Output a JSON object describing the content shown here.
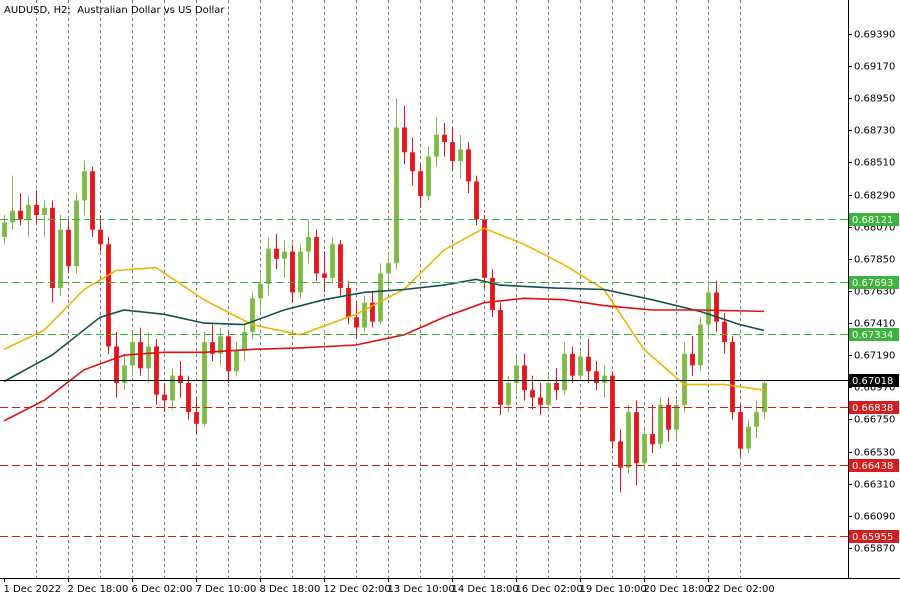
{
  "chart_data": {
    "type": "candlestick",
    "title": "AUDUSD, H2:  Australian Dollar vs US Dollar",
    "up_color": "#7dbb42",
    "down_color": "#e8141a",
    "ylim": [
      0.65664,
      0.69623
    ],
    "yticks": [
      {
        "value": 0.6939,
        "label": "0.69390"
      },
      {
        "value": 0.6917,
        "label": "0.69170"
      },
      {
        "value": 0.6895,
        "label": "0.68950"
      },
      {
        "value": 0.6873,
        "label": "0.68730"
      },
      {
        "value": 0.6851,
        "label": "0.68510"
      },
      {
        "value": 0.6829,
        "label": "0.68290"
      },
      {
        "value": 0.6807,
        "label": "0.68070"
      },
      {
        "value": 0.6785,
        "label": "0.67850"
      },
      {
        "value": 0.6763,
        "label": "0.67630"
      },
      {
        "value": 0.6741,
        "label": "0.67410"
      },
      {
        "value": 0.6719,
        "label": "0.67190"
      },
      {
        "value": 0.6697,
        "label": "0.66970"
      },
      {
        "value": 0.6675,
        "label": "0.66750"
      },
      {
        "value": 0.6653,
        "label": "0.66530"
      },
      {
        "value": 0.6631,
        "label": "0.66310"
      },
      {
        "value": 0.6609,
        "label": "0.66090"
      },
      {
        "value": 0.6587,
        "label": "0.65870"
      }
    ],
    "xlim": [
      -0.5,
      105.5
    ],
    "xticks": [
      {
        "value": 0,
        "label": "1 Dec 2022"
      },
      {
        "value": 8,
        "label": "2 Dec 18:00"
      },
      {
        "value": 16,
        "label": "6 Dec 02:00"
      },
      {
        "value": 24,
        "label": "7 Dec 10:00"
      },
      {
        "value": 32,
        "label": "8 Dec 18:00"
      },
      {
        "value": 40,
        "label": "12 Dec 02:00"
      },
      {
        "value": 48,
        "label": "13 Dec 10:00"
      },
      {
        "value": 56,
        "label": "14 Dec 18:00"
      },
      {
        "value": 64,
        "label": "16 Dec 02:00"
      },
      {
        "value": 72,
        "label": "19 Dec 10:00"
      },
      {
        "value": 80,
        "label": "20 Dec 18:00"
      },
      {
        "value": 88,
        "label": "22 Dec 02:00"
      }
    ],
    "ohlc": [
      [
        0.68,
        0.6815,
        0.6795,
        0.681
      ],
      [
        0.681,
        0.6842,
        0.6805,
        0.6818
      ],
      [
        0.6818,
        0.683,
        0.6808,
        0.6812
      ],
      [
        0.6812,
        0.6828,
        0.68,
        0.6822
      ],
      [
        0.6822,
        0.6832,
        0.681,
        0.6815
      ],
      [
        0.6815,
        0.6825,
        0.68,
        0.682
      ],
      [
        0.682,
        0.6825,
        0.6755,
        0.6765
      ],
      [
        0.6765,
        0.6815,
        0.676,
        0.6805
      ],
      [
        0.6805,
        0.6812,
        0.6775,
        0.678
      ],
      [
        0.678,
        0.683,
        0.6775,
        0.6825
      ],
      [
        0.6825,
        0.6852,
        0.6815,
        0.6845
      ],
      [
        0.6845,
        0.6848,
        0.68,
        0.6805
      ],
      [
        0.6805,
        0.6815,
        0.679,
        0.6795
      ],
      [
        0.6795,
        0.68,
        0.672,
        0.6725
      ],
      [
        0.6725,
        0.6735,
        0.669,
        0.67
      ],
      [
        0.67,
        0.672,
        0.6695,
        0.6712
      ],
      [
        0.6712,
        0.6735,
        0.6705,
        0.6728
      ],
      [
        0.6728,
        0.6738,
        0.6705,
        0.671
      ],
      [
        0.671,
        0.6735,
        0.67,
        0.6725
      ],
      [
        0.6725,
        0.673,
        0.6685,
        0.6692
      ],
      [
        0.6692,
        0.67,
        0.668,
        0.6688
      ],
      [
        0.6688,
        0.671,
        0.6682,
        0.6705
      ],
      [
        0.6705,
        0.6715,
        0.669,
        0.67
      ],
      [
        0.67,
        0.6705,
        0.6675,
        0.668
      ],
      [
        0.668,
        0.669,
        0.6665,
        0.6672
      ],
      [
        0.6672,
        0.6735,
        0.667,
        0.6728
      ],
      [
        0.6728,
        0.674,
        0.6715,
        0.672
      ],
      [
        0.672,
        0.6738,
        0.6712,
        0.6732
      ],
      [
        0.6732,
        0.6735,
        0.67,
        0.6708
      ],
      [
        0.6708,
        0.6728,
        0.6705,
        0.6722
      ],
      [
        0.6722,
        0.674,
        0.6715,
        0.6735
      ],
      [
        0.6735,
        0.6762,
        0.673,
        0.6758
      ],
      [
        0.6758,
        0.6775,
        0.6748,
        0.6768
      ],
      [
        0.6768,
        0.68,
        0.676,
        0.6792
      ],
      [
        0.6792,
        0.6802,
        0.6778,
        0.6785
      ],
      [
        0.6785,
        0.6798,
        0.6772,
        0.679
      ],
      [
        0.679,
        0.6795,
        0.6755,
        0.6762
      ],
      [
        0.6762,
        0.6795,
        0.6758,
        0.679
      ],
      [
        0.679,
        0.6812,
        0.6782,
        0.68
      ],
      [
        0.68,
        0.6805,
        0.677,
        0.6775
      ],
      [
        0.6775,
        0.679,
        0.6762,
        0.6772
      ],
      [
        0.6772,
        0.68,
        0.6768,
        0.6795
      ],
      [
        0.6795,
        0.6798,
        0.676,
        0.6765
      ],
      [
        0.6765,
        0.677,
        0.674,
        0.6745
      ],
      [
        0.6745,
        0.6755,
        0.673,
        0.6738
      ],
      [
        0.6738,
        0.676,
        0.6735,
        0.6755
      ],
      [
        0.6755,
        0.6762,
        0.6738,
        0.6742
      ],
      [
        0.6742,
        0.6782,
        0.674,
        0.6775
      ],
      [
        0.6775,
        0.679,
        0.6765,
        0.6782
      ],
      [
        0.6782,
        0.6895,
        0.6778,
        0.6875
      ],
      [
        0.6875,
        0.689,
        0.685,
        0.6858
      ],
      [
        0.6858,
        0.6868,
        0.6835,
        0.6845
      ],
      [
        0.6845,
        0.685,
        0.682,
        0.6828
      ],
      [
        0.6828,
        0.6862,
        0.6825,
        0.6855
      ],
      [
        0.6855,
        0.6882,
        0.6848,
        0.687
      ],
      [
        0.687,
        0.6878,
        0.6855,
        0.6865
      ],
      [
        0.6865,
        0.6875,
        0.6845,
        0.6852
      ],
      [
        0.6852,
        0.687,
        0.684,
        0.686
      ],
      [
        0.686,
        0.6865,
        0.683,
        0.6838
      ],
      [
        0.6838,
        0.6842,
        0.6808,
        0.6812
      ],
      [
        0.6812,
        0.6815,
        0.6765,
        0.6772
      ],
      [
        0.6772,
        0.6778,
        0.6745,
        0.675
      ],
      [
        0.675,
        0.6755,
        0.6678,
        0.6685
      ],
      [
        0.6685,
        0.6705,
        0.668,
        0.67
      ],
      [
        0.67,
        0.6718,
        0.6692,
        0.6712
      ],
      [
        0.6712,
        0.672,
        0.6688,
        0.6695
      ],
      [
        0.6695,
        0.6705,
        0.6682,
        0.669
      ],
      [
        0.669,
        0.67,
        0.6678,
        0.6685
      ],
      [
        0.6685,
        0.6705,
        0.6682,
        0.67
      ],
      [
        0.67,
        0.671,
        0.6688,
        0.6695
      ],
      [
        0.6695,
        0.6728,
        0.6692,
        0.672
      ],
      [
        0.672,
        0.6725,
        0.67,
        0.6705
      ],
      [
        0.6705,
        0.6722,
        0.6702,
        0.6718
      ],
      [
        0.6718,
        0.673,
        0.67,
        0.6708
      ],
      [
        0.6708,
        0.6715,
        0.6695,
        0.67
      ],
      [
        0.67,
        0.6712,
        0.669,
        0.6705
      ],
      [
        0.6705,
        0.6708,
        0.6655,
        0.666
      ],
      [
        0.666,
        0.6668,
        0.6625,
        0.6642
      ],
      [
        0.6642,
        0.6685,
        0.6638,
        0.668
      ],
      [
        0.668,
        0.6688,
        0.663,
        0.6645
      ],
      [
        0.6645,
        0.667,
        0.664,
        0.6665
      ],
      [
        0.6665,
        0.6685,
        0.6652,
        0.6658
      ],
      [
        0.6658,
        0.669,
        0.6655,
        0.6685
      ],
      [
        0.6685,
        0.669,
        0.666,
        0.6668
      ],
      [
        0.6668,
        0.669,
        0.6662,
        0.6685
      ],
      [
        0.6685,
        0.6728,
        0.668,
        0.672
      ],
      [
        0.672,
        0.6732,
        0.6705,
        0.6712
      ],
      [
        0.6712,
        0.6745,
        0.6708,
        0.674
      ],
      [
        0.674,
        0.677,
        0.673,
        0.6762
      ],
      [
        0.6762,
        0.677,
        0.6735,
        0.6742
      ],
      [
        0.6742,
        0.6748,
        0.672,
        0.6728
      ],
      [
        0.6728,
        0.6732,
        0.6675,
        0.668
      ],
      [
        0.668,
        0.6685,
        0.665,
        0.6655
      ],
      [
        0.6655,
        0.6675,
        0.6652,
        0.667
      ],
      [
        0.667,
        0.6688,
        0.6662,
        0.668
      ],
      [
        0.668,
        0.6702,
        0.6675,
        0.67
      ]
    ],
    "lines": [
      {
        "color": "#f0b400",
        "x": [
          0,
          5,
          10,
          14,
          19,
          25,
          31,
          37,
          44,
          50,
          55,
          60,
          65,
          70,
          75,
          80,
          85,
          90,
          95
        ],
        "values": [
          0.6723,
          0.6736,
          0.6764,
          0.6777,
          0.6779,
          0.6757,
          0.674,
          0.6733,
          0.6747,
          0.6764,
          0.6791,
          0.6806,
          0.6795,
          0.6781,
          0.6764,
          0.6723,
          0.6699,
          0.6699,
          0.6695
        ]
      },
      {
        "color": "#14504a",
        "x": [
          0,
          6,
          12,
          15,
          20,
          25,
          30,
          35,
          40,
          45,
          50,
          55,
          59,
          62,
          69,
          75,
          81,
          87,
          92,
          95
        ],
        "values": [
          0.6701,
          0.6719,
          0.6745,
          0.675,
          0.6747,
          0.6741,
          0.674,
          0.675,
          0.6757,
          0.6762,
          0.6764,
          0.6767,
          0.6771,
          0.6767,
          0.6765,
          0.6764,
          0.6757,
          0.6749,
          0.674,
          0.6736
        ]
      },
      {
        "color": "#dd1111",
        "x": [
          0,
          5,
          10,
          15,
          20,
          25,
          31,
          37,
          44,
          50,
          55,
          60,
          65,
          70,
          75,
          81,
          87,
          95
        ],
        "values": [
          0.6674,
          0.6688,
          0.6709,
          0.6719,
          0.6721,
          0.6721,
          0.6723,
          0.6724,
          0.6726,
          0.6733,
          0.6745,
          0.6755,
          0.6758,
          0.6757,
          0.6753,
          0.675,
          0.675,
          0.6749
        ]
      }
    ],
    "levels": [
      {
        "value": 0.68121,
        "color": "#3cb43c",
        "style": "dashed"
      },
      {
        "value": 0.67693,
        "color": "#3cb43c",
        "style": "dashed"
      },
      {
        "value": 0.67334,
        "color": "#3cb43c",
        "style": "dashed"
      },
      {
        "value": 0.67018,
        "color": "#000000",
        "style": "solid"
      },
      {
        "value": 0.66838,
        "color": "#d61c1c",
        "style": "dashed"
      },
      {
        "value": 0.66438,
        "color": "#d61c1c",
        "style": "dashed"
      },
      {
        "value": 0.65955,
        "color": "#d61c1c",
        "style": "dashed"
      }
    ]
  }
}
